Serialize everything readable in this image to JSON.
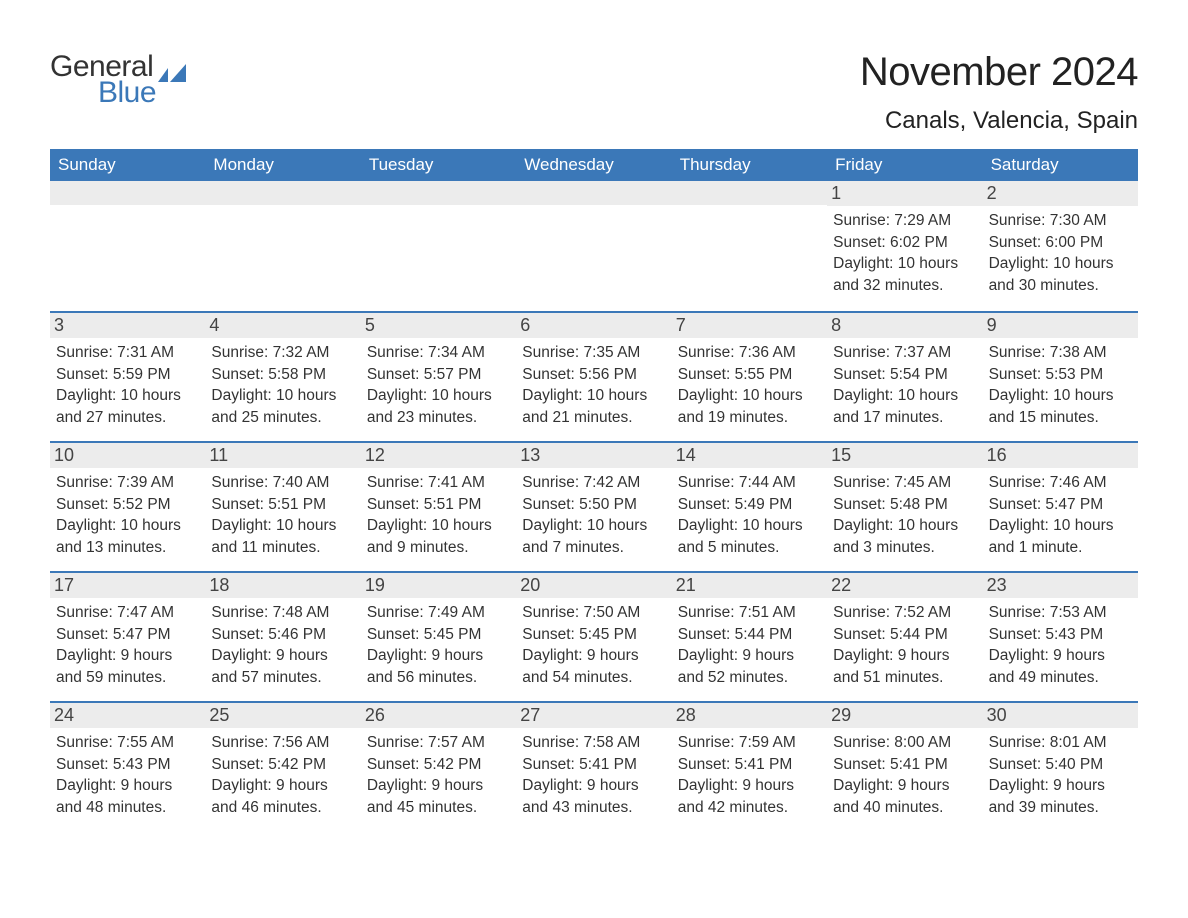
{
  "logo": {
    "general": "General",
    "blue": "Blue"
  },
  "title": "November 2024",
  "location": "Canals, Valencia, Spain",
  "colors": {
    "header_bg": "#3b78b8",
    "header_text": "#ffffff",
    "daynum_bg": "#ececec",
    "border": "#3b78b8",
    "text": "#333333"
  },
  "weekdays": [
    "Sunday",
    "Monday",
    "Tuesday",
    "Wednesday",
    "Thursday",
    "Friday",
    "Saturday"
  ],
  "weeks": [
    [
      {
        "day": "",
        "sunrise": "",
        "sunset": "",
        "daylight": ""
      },
      {
        "day": "",
        "sunrise": "",
        "sunset": "",
        "daylight": ""
      },
      {
        "day": "",
        "sunrise": "",
        "sunset": "",
        "daylight": ""
      },
      {
        "day": "",
        "sunrise": "",
        "sunset": "",
        "daylight": ""
      },
      {
        "day": "",
        "sunrise": "",
        "sunset": "",
        "daylight": ""
      },
      {
        "day": "1",
        "sunrise": "Sunrise: 7:29 AM",
        "sunset": "Sunset: 6:02 PM",
        "daylight": "Daylight: 10 hours and 32 minutes."
      },
      {
        "day": "2",
        "sunrise": "Sunrise: 7:30 AM",
        "sunset": "Sunset: 6:00 PM",
        "daylight": "Daylight: 10 hours and 30 minutes."
      }
    ],
    [
      {
        "day": "3",
        "sunrise": "Sunrise: 7:31 AM",
        "sunset": "Sunset: 5:59 PM",
        "daylight": "Daylight: 10 hours and 27 minutes."
      },
      {
        "day": "4",
        "sunrise": "Sunrise: 7:32 AM",
        "sunset": "Sunset: 5:58 PM",
        "daylight": "Daylight: 10 hours and 25 minutes."
      },
      {
        "day": "5",
        "sunrise": "Sunrise: 7:34 AM",
        "sunset": "Sunset: 5:57 PM",
        "daylight": "Daylight: 10 hours and 23 minutes."
      },
      {
        "day": "6",
        "sunrise": "Sunrise: 7:35 AM",
        "sunset": "Sunset: 5:56 PM",
        "daylight": "Daylight: 10 hours and 21 minutes."
      },
      {
        "day": "7",
        "sunrise": "Sunrise: 7:36 AM",
        "sunset": "Sunset: 5:55 PM",
        "daylight": "Daylight: 10 hours and 19 minutes."
      },
      {
        "day": "8",
        "sunrise": "Sunrise: 7:37 AM",
        "sunset": "Sunset: 5:54 PM",
        "daylight": "Daylight: 10 hours and 17 minutes."
      },
      {
        "day": "9",
        "sunrise": "Sunrise: 7:38 AM",
        "sunset": "Sunset: 5:53 PM",
        "daylight": "Daylight: 10 hours and 15 minutes."
      }
    ],
    [
      {
        "day": "10",
        "sunrise": "Sunrise: 7:39 AM",
        "sunset": "Sunset: 5:52 PM",
        "daylight": "Daylight: 10 hours and 13 minutes."
      },
      {
        "day": "11",
        "sunrise": "Sunrise: 7:40 AM",
        "sunset": "Sunset: 5:51 PM",
        "daylight": "Daylight: 10 hours and 11 minutes."
      },
      {
        "day": "12",
        "sunrise": "Sunrise: 7:41 AM",
        "sunset": "Sunset: 5:51 PM",
        "daylight": "Daylight: 10 hours and 9 minutes."
      },
      {
        "day": "13",
        "sunrise": "Sunrise: 7:42 AM",
        "sunset": "Sunset: 5:50 PM",
        "daylight": "Daylight: 10 hours and 7 minutes."
      },
      {
        "day": "14",
        "sunrise": "Sunrise: 7:44 AM",
        "sunset": "Sunset: 5:49 PM",
        "daylight": "Daylight: 10 hours and 5 minutes."
      },
      {
        "day": "15",
        "sunrise": "Sunrise: 7:45 AM",
        "sunset": "Sunset: 5:48 PM",
        "daylight": "Daylight: 10 hours and 3 minutes."
      },
      {
        "day": "16",
        "sunrise": "Sunrise: 7:46 AM",
        "sunset": "Sunset: 5:47 PM",
        "daylight": "Daylight: 10 hours and 1 minute."
      }
    ],
    [
      {
        "day": "17",
        "sunrise": "Sunrise: 7:47 AM",
        "sunset": "Sunset: 5:47 PM",
        "daylight": "Daylight: 9 hours and 59 minutes."
      },
      {
        "day": "18",
        "sunrise": "Sunrise: 7:48 AM",
        "sunset": "Sunset: 5:46 PM",
        "daylight": "Daylight: 9 hours and 57 minutes."
      },
      {
        "day": "19",
        "sunrise": "Sunrise: 7:49 AM",
        "sunset": "Sunset: 5:45 PM",
        "daylight": "Daylight: 9 hours and 56 minutes."
      },
      {
        "day": "20",
        "sunrise": "Sunrise: 7:50 AM",
        "sunset": "Sunset: 5:45 PM",
        "daylight": "Daylight: 9 hours and 54 minutes."
      },
      {
        "day": "21",
        "sunrise": "Sunrise: 7:51 AM",
        "sunset": "Sunset: 5:44 PM",
        "daylight": "Daylight: 9 hours and 52 minutes."
      },
      {
        "day": "22",
        "sunrise": "Sunrise: 7:52 AM",
        "sunset": "Sunset: 5:44 PM",
        "daylight": "Daylight: 9 hours and 51 minutes."
      },
      {
        "day": "23",
        "sunrise": "Sunrise: 7:53 AM",
        "sunset": "Sunset: 5:43 PM",
        "daylight": "Daylight: 9 hours and 49 minutes."
      }
    ],
    [
      {
        "day": "24",
        "sunrise": "Sunrise: 7:55 AM",
        "sunset": "Sunset: 5:43 PM",
        "daylight": "Daylight: 9 hours and 48 minutes."
      },
      {
        "day": "25",
        "sunrise": "Sunrise: 7:56 AM",
        "sunset": "Sunset: 5:42 PM",
        "daylight": "Daylight: 9 hours and 46 minutes."
      },
      {
        "day": "26",
        "sunrise": "Sunrise: 7:57 AM",
        "sunset": "Sunset: 5:42 PM",
        "daylight": "Daylight: 9 hours and 45 minutes."
      },
      {
        "day": "27",
        "sunrise": "Sunrise: 7:58 AM",
        "sunset": "Sunset: 5:41 PM",
        "daylight": "Daylight: 9 hours and 43 minutes."
      },
      {
        "day": "28",
        "sunrise": "Sunrise: 7:59 AM",
        "sunset": "Sunset: 5:41 PM",
        "daylight": "Daylight: 9 hours and 42 minutes."
      },
      {
        "day": "29",
        "sunrise": "Sunrise: 8:00 AM",
        "sunset": "Sunset: 5:41 PM",
        "daylight": "Daylight: 9 hours and 40 minutes."
      },
      {
        "day": "30",
        "sunrise": "Sunrise: 8:01 AM",
        "sunset": "Sunset: 5:40 PM",
        "daylight": "Daylight: 9 hours and 39 minutes."
      }
    ]
  ]
}
